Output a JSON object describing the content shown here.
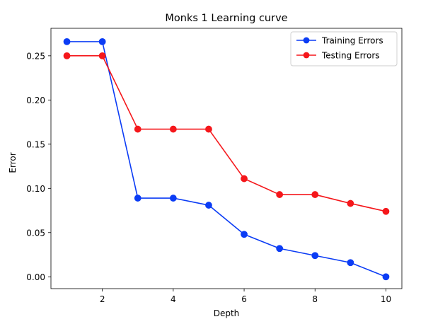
{
  "chart_data": {
    "type": "line",
    "title": "Monks 1 Learning curve",
    "xlabel": "Depth",
    "ylabel": "Error",
    "x": [
      1,
      2,
      3,
      4,
      5,
      6,
      7,
      8,
      9,
      10
    ],
    "xlim": [
      0.55,
      10.45
    ],
    "ylim": [
      -0.0134,
      0.2811
    ],
    "xticks": [
      2,
      4,
      6,
      8,
      10
    ],
    "yticks": [
      0.0,
      0.05,
      0.1,
      0.15,
      0.2,
      0.25
    ],
    "xtick_labels": [
      "2",
      "4",
      "6",
      "8",
      "10"
    ],
    "ytick_labels": [
      "0.00",
      "0.05",
      "0.10",
      "0.15",
      "0.20",
      "0.25"
    ],
    "grid": false,
    "legend_position": "top-right",
    "series": [
      {
        "name": "Training Errors",
        "color": "#0b3cf5",
        "values": [
          0.266,
          0.266,
          0.089,
          0.089,
          0.081,
          0.048,
          0.032,
          0.024,
          0.016,
          0.0
        ]
      },
      {
        "name": "Testing Errors",
        "color": "#f5171b",
        "values": [
          0.25,
          0.25,
          0.167,
          0.167,
          0.167,
          0.111,
          0.093,
          0.093,
          0.083,
          0.074
        ]
      }
    ]
  }
}
